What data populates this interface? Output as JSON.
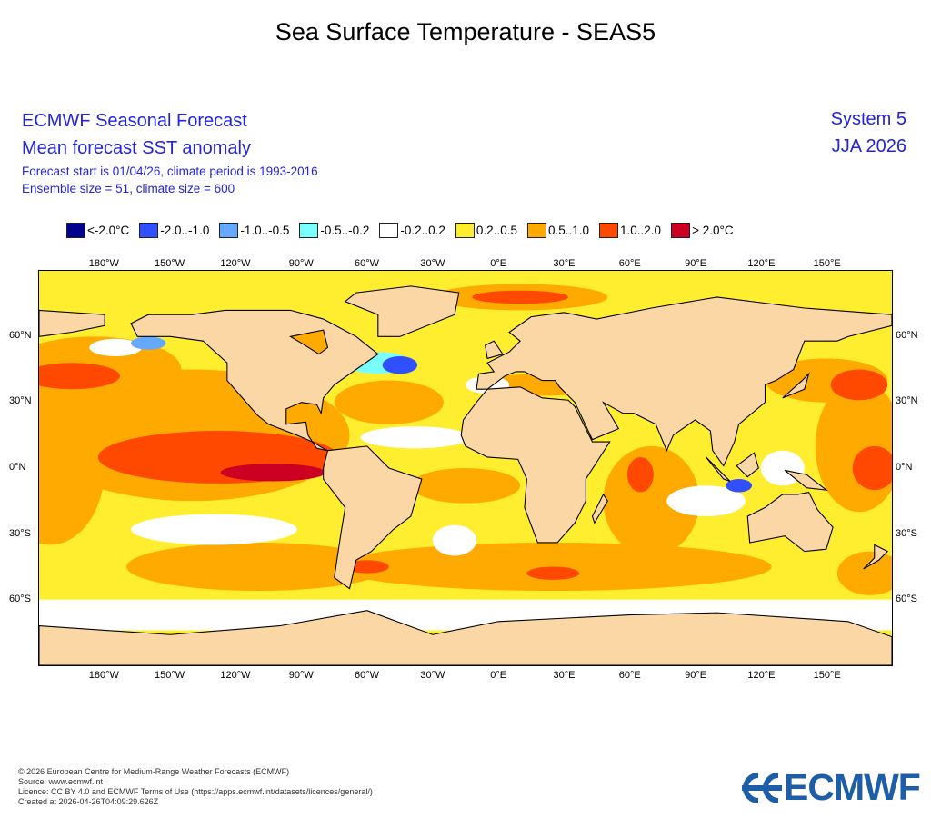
{
  "title": "Sea Surface Temperature - SEAS5",
  "header": {
    "line1": "ECMWF Seasonal Forecast",
    "line2": "Mean forecast SST anomaly",
    "line3": "Forecast start is 01/04/26, climate period is 1993-2016",
    "line4": "Ensemble size = 51, climate size = 600",
    "system": "System 5",
    "season": "JJA 2026"
  },
  "legend": [
    {
      "label": "<-2.0°C",
      "color": "#00008f"
    },
    {
      "label": "-2.0..-1.0",
      "color": "#3050ff"
    },
    {
      "label": "-1.0..-0.5",
      "color": "#65a8ff"
    },
    {
      "label": "-0.5..-0.2",
      "color": "#78ffff"
    },
    {
      "label": "-0.2..0.2",
      "color": "#ffffff"
    },
    {
      "label": "0.2..0.5",
      "color": "#ffee30"
    },
    {
      "label": "0.5..1.0",
      "color": "#ffaa00"
    },
    {
      "label": "1.0..2.0",
      "color": "#ff4800"
    },
    {
      "label": "> 2.0°C",
      "color": "#cc0022"
    }
  ],
  "map": {
    "projection": "equirectangular",
    "land_color": "#fad7a4",
    "lon_labels": [
      "180°W",
      "150°W",
      "120°W",
      "90°W",
      "60°W",
      "30°W",
      "0°E",
      "30°E",
      "60°E",
      "90°E",
      "120°E",
      "150°E"
    ],
    "lat_labels": [
      "60°N",
      "30°N",
      "0°N",
      "30°S",
      "60°S"
    ]
  },
  "footer": [
    "© 2026 European Centre for Medium-Range Weather Forecasts (ECMWF)",
    "Source: www.ecmwf.int",
    "Licence: CC BY 4.0 and ECMWF Terms of Use (https://apps.ecmwf.int/datasets/licences/general/)",
    "Created at 2026-04-26T04:09:29.626Z"
  ],
  "logo": {
    "text": "ECMWF",
    "color": "#1e5ea8"
  }
}
